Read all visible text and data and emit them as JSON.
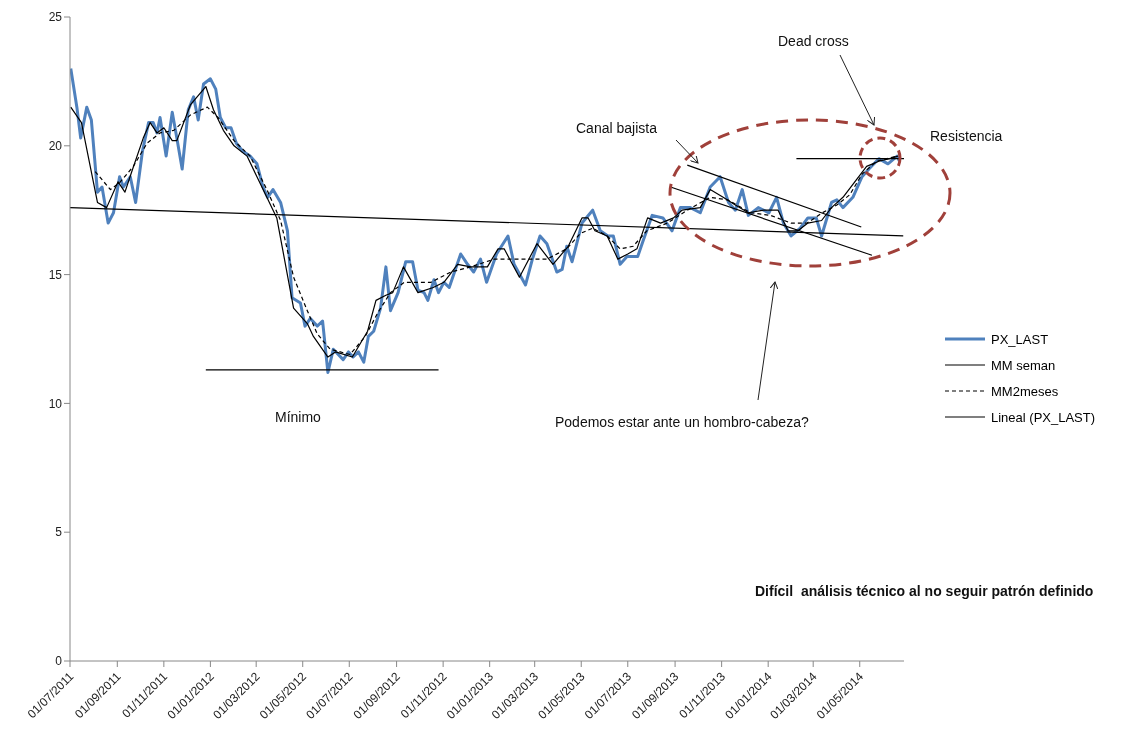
{
  "chart_data": {
    "type": "line",
    "xlim": [
      "2011-07-01",
      "2014-06-28"
    ],
    "ylim": [
      0,
      25
    ],
    "yticks": [
      0,
      5,
      10,
      15,
      20,
      25
    ],
    "xticks": [
      {
        "value": "2011-07-01",
        "label": "01/07/2011"
      },
      {
        "value": "2011-09-01",
        "label": "01/09/2011"
      },
      {
        "value": "2011-11-01",
        "label": "01/11/2011"
      },
      {
        "value": "2012-01-01",
        "label": "01/01/2012"
      },
      {
        "value": "2012-03-01",
        "label": "01/03/2012"
      },
      {
        "value": "2012-05-01",
        "label": "01/05/2012"
      },
      {
        "value": "2012-07-01",
        "label": "01/07/2012"
      },
      {
        "value": "2012-09-01",
        "label": "01/09/2012"
      },
      {
        "value": "2012-11-01",
        "label": "01/11/2012"
      },
      {
        "value": "2013-01-01",
        "label": "01/01/2013"
      },
      {
        "value": "2013-03-01",
        "label": "01/03/2013"
      },
      {
        "value": "2013-05-01",
        "label": "01/05/2013"
      },
      {
        "value": "2013-07-01",
        "label": "01/07/2013"
      },
      {
        "value": "2013-09-01",
        "label": "01/09/2013"
      },
      {
        "value": "2013-11-01",
        "label": "01/11/2013"
      },
      {
        "value": "2014-01-01",
        "label": "01/01/2014"
      },
      {
        "value": "2014-03-01",
        "label": "01/03/2014"
      },
      {
        "value": "2014-05-01",
        "label": "01/05/2014"
      }
    ],
    "legend": "right",
    "marker": "none",
    "annotations": [
      "Dead cross",
      "Canal bajista",
      "Resistencia",
      "Mínimo",
      "Podemos estar ante un hombro-cabeza?",
      "Difícil  análisis técnico al no seguir patrón definido"
    ],
    "series": [
      {
        "name": "PX_LAST",
        "color": "#4f81bd",
        "line_style": "solid",
        "x": [
          "2011-07-02",
          "2011-07-10",
          "2011-07-15",
          "2011-07-23",
          "2011-07-29",
          "2011-08-06",
          "2011-08-12",
          "2011-08-20",
          "2011-08-27",
          "2011-09-04",
          "2011-09-09",
          "2011-09-18",
          "2011-09-25",
          "2011-10-04",
          "2011-10-12",
          "2011-10-18",
          "2011-10-23",
          "2011-10-27",
          "2011-11-04",
          "2011-11-12",
          "2011-11-18",
          "2011-11-25",
          "2011-12-03",
          "2011-12-10",
          "2011-12-16",
          "2011-12-23",
          "2012-01-01",
          "2012-01-08",
          "2012-01-14",
          "2012-01-21",
          "2012-01-28",
          "2012-02-04",
          "2012-02-12",
          "2012-02-22",
          "2012-03-02",
          "2012-03-10",
          "2012-03-16",
          "2012-03-23",
          "2012-04-02",
          "2012-04-11",
          "2012-04-17",
          "2012-04-28",
          "2012-05-04",
          "2012-05-11",
          "2012-05-20",
          "2012-05-27",
          "2012-06-03",
          "2012-06-10",
          "2012-06-23",
          "2012-06-30",
          "2012-07-06",
          "2012-07-13",
          "2012-07-20",
          "2012-07-26",
          "2012-08-02",
          "2012-08-11",
          "2012-08-18",
          "2012-08-24",
          "2012-09-03",
          "2012-09-13",
          "2012-09-22",
          "2012-09-29",
          "2012-10-07",
          "2012-10-12",
          "2012-10-20",
          "2012-10-26",
          "2012-11-02",
          "2012-11-09",
          "2012-11-24",
          "2012-12-03",
          "2012-12-11",
          "2012-12-20",
          "2012-12-28",
          "2013-01-10",
          "2013-01-25",
          "2013-02-02",
          "2013-02-17",
          "2013-02-26",
          "2013-03-08",
          "2013-03-17",
          "2013-03-30",
          "2013-04-06",
          "2013-04-12",
          "2013-04-19",
          "2013-05-02",
          "2013-05-16",
          "2013-05-26",
          "2013-06-05",
          "2013-06-12",
          "2013-06-21",
          "2013-06-30",
          "2013-07-14",
          "2013-07-21",
          "2013-08-02",
          "2013-08-16",
          "2013-08-28",
          "2013-09-08",
          "2013-09-21",
          "2013-10-04",
          "2013-10-17",
          "2013-10-30",
          "2013-11-10",
          "2013-11-19",
          "2013-11-28",
          "2013-12-06",
          "2013-12-19",
          "2014-01-02",
          "2014-01-12",
          "2014-01-21",
          "2014-01-31",
          "2014-02-12",
          "2014-02-22",
          "2014-03-05",
          "2014-03-12",
          "2014-03-25",
          "2014-04-01",
          "2014-04-09",
          "2014-04-22",
          "2014-05-04",
          "2014-05-13",
          "2014-05-26",
          "2014-06-07",
          "2014-06-19",
          "2014-06-22"
        ],
        "values": [
          23.0,
          21.5,
          20.3,
          21.5,
          21.0,
          18.2,
          18.4,
          17.0,
          17.4,
          18.8,
          18.4,
          18.8,
          17.8,
          19.8,
          20.9,
          20.9,
          20.5,
          21.1,
          19.6,
          21.3,
          20.3,
          19.1,
          21.4,
          21.9,
          21.0,
          22.4,
          22.6,
          22.2,
          21.1,
          20.7,
          20.7,
          20.1,
          19.8,
          19.6,
          19.3,
          18.4,
          18.0,
          18.3,
          17.8,
          16.7,
          14.1,
          13.9,
          13.0,
          13.3,
          13.0,
          13.2,
          11.2,
          12.1,
          11.7,
          12.0,
          11.8,
          12.0,
          11.6,
          12.6,
          12.8,
          13.7,
          15.3,
          13.6,
          14.3,
          15.5,
          15.5,
          14.4,
          14.3,
          14.0,
          14.8,
          14.3,
          14.7,
          14.5,
          15.8,
          15.4,
          15.1,
          15.6,
          14.7,
          15.8,
          16.5,
          15.4,
          14.6,
          15.6,
          16.5,
          16.2,
          15.1,
          15.2,
          16.1,
          15.5,
          17.0,
          17.5,
          16.7,
          16.5,
          16.5,
          15.4,
          15.7,
          15.7,
          16.3,
          17.3,
          17.2,
          16.7,
          17.6,
          17.6,
          17.4,
          18.4,
          18.8,
          17.8,
          17.5,
          18.3,
          17.3,
          17.6,
          17.4,
          18.0,
          17.0,
          16.5,
          16.8,
          17.2,
          17.2,
          16.5,
          17.8,
          17.9,
          17.6,
          18.0,
          18.8,
          19.1,
          19.5,
          19.3,
          19.6,
          19.4
        ]
      },
      {
        "name": "MM seman",
        "color": "#000000",
        "line_style": "solid",
        "x": [
          "2011-07-02",
          "2011-07-16",
          "2011-08-06",
          "2011-08-18",
          "2011-09-02",
          "2011-09-11",
          "2011-09-20",
          "2011-10-05",
          "2011-10-14",
          "2011-10-23",
          "2011-11-01",
          "2011-11-12",
          "2011-11-18",
          "2011-12-06",
          "2011-12-26",
          "2012-01-05",
          "2012-01-18",
          "2012-02-01",
          "2012-02-18",
          "2012-03-02",
          "2012-03-15",
          "2012-03-28",
          "2012-04-19",
          "2012-05-07",
          "2012-05-15",
          "2012-06-03",
          "2012-06-13",
          "2012-07-05",
          "2012-07-25",
          "2012-08-05",
          "2012-08-18",
          "2012-08-27",
          "2012-09-10",
          "2012-09-29",
          "2012-10-19",
          "2012-11-02",
          "2012-11-20",
          "2012-12-07",
          "2012-12-29",
          "2013-01-12",
          "2013-01-20",
          "2013-02-09",
          "2013-03-04",
          "2013-03-25",
          "2013-04-14",
          "2013-05-02",
          "2013-05-10",
          "2013-05-19",
          "2013-06-04",
          "2013-06-18",
          "2013-07-01",
          "2013-07-13",
          "2013-07-27",
          "2013-08-13",
          "2013-08-30",
          "2013-09-10",
          "2013-10-04",
          "2013-10-17",
          "2013-11-03",
          "2013-11-19",
          "2013-12-06",
          "2013-12-26",
          "2014-01-14",
          "2014-01-27",
          "2014-02-09",
          "2014-02-22",
          "2014-03-12",
          "2014-03-25",
          "2014-04-09",
          "2014-04-27",
          "2014-05-10",
          "2014-05-26",
          "2014-06-09",
          "2014-06-20"
        ],
        "values": [
          21.5,
          20.9,
          17.8,
          17.6,
          18.6,
          18.2,
          19.0,
          20.3,
          20.9,
          20.5,
          20.7,
          20.2,
          20.2,
          21.6,
          22.3,
          21.4,
          20.6,
          20.0,
          19.6,
          18.8,
          18.0,
          17.2,
          13.7,
          13.1,
          12.6,
          11.8,
          12.0,
          11.8,
          12.8,
          14.0,
          14.2,
          14.3,
          15.3,
          14.3,
          14.5,
          14.7,
          15.4,
          15.3,
          15.3,
          16.0,
          16.0,
          14.9,
          16.2,
          15.4,
          16.1,
          17.2,
          17.2,
          16.7,
          16.5,
          15.6,
          15.8,
          16.0,
          17.2,
          17.0,
          17.2,
          17.5,
          17.6,
          18.3,
          18.0,
          17.7,
          17.4,
          17.5,
          17.5,
          16.7,
          16.7,
          17.0,
          17.1,
          17.6,
          18.0,
          18.7,
          19.2,
          19.4,
          19.5,
          19.6
        ]
      },
      {
        "name": "MM2meses",
        "color": "#000000",
        "line_style": "dashed",
        "x": [
          "2011-08-03",
          "2011-08-23",
          "2011-09-05",
          "2011-09-22",
          "2011-10-10",
          "2011-10-27",
          "2011-11-14",
          "2011-12-06",
          "2011-12-28",
          "2012-01-11",
          "2012-02-01",
          "2012-02-22",
          "2012-03-15",
          "2012-04-02",
          "2012-04-19",
          "2012-05-07",
          "2012-05-20",
          "2012-06-06",
          "2012-07-02",
          "2012-07-22",
          "2012-08-07",
          "2012-08-24",
          "2012-09-11",
          "2012-09-29",
          "2012-10-16",
          "2012-11-11",
          "2012-12-07",
          "2013-01-07",
          "2013-02-11",
          "2013-03-17",
          "2013-04-12",
          "2013-04-30",
          "2013-05-16",
          "2013-06-04",
          "2013-06-21",
          "2013-07-08",
          "2013-07-26",
          "2013-08-22",
          "2013-09-17",
          "2013-10-17",
          "2013-11-09",
          "2013-12-09",
          "2014-01-04",
          "2014-01-31",
          "2014-02-21",
          "2014-03-13",
          "2014-04-01",
          "2014-04-18",
          "2014-05-04",
          "2014-05-23",
          "2014-06-19"
        ],
        "values": [
          19.0,
          18.3,
          18.6,
          19.2,
          20.1,
          20.5,
          20.6,
          21.2,
          21.5,
          21.1,
          20.2,
          19.6,
          18.3,
          17.1,
          14.9,
          13.6,
          12.7,
          12.1,
          11.9,
          12.6,
          13.5,
          14.3,
          14.7,
          14.7,
          14.7,
          15.1,
          15.3,
          15.6,
          15.6,
          15.6,
          16.0,
          16.6,
          16.8,
          16.5,
          16.0,
          16.1,
          16.7,
          17.0,
          17.5,
          18.0,
          17.9,
          17.4,
          17.3,
          17.0,
          17.0,
          17.4,
          17.7,
          18.1,
          18.9,
          19.4,
          19.6
        ]
      },
      {
        "name": "Lineal (PX_LAST)",
        "color": "#000000",
        "line_style": "solid",
        "x": [
          "2011-07-01",
          "2014-06-27"
        ],
        "values": [
          17.6,
          16.5
        ]
      },
      {
        "type": "line",
        "color": "#000000",
        "line_style": "solid",
        "x": [
          "2011-12-26",
          "2012-10-26"
        ],
        "values": [
          11.3,
          11.3
        ]
      },
      {
        "type": "line",
        "color": "#000000",
        "line_style": "solid",
        "x": [
          "2014-02-07",
          "2014-06-28"
        ],
        "values": [
          19.5,
          19.5
        ]
      },
      {
        "type": "line",
        "color": "#000000",
        "line_style": "solid",
        "x": [
          "2013-09-17",
          "2014-05-03"
        ],
        "values": [
          19.25,
          16.85
        ]
      },
      {
        "type": "line",
        "color": "#000000",
        "line_style": "solid",
        "x": [
          "2013-08-26",
          "2014-05-17"
        ],
        "values": [
          18.4,
          15.75
        ]
      }
    ]
  }
}
